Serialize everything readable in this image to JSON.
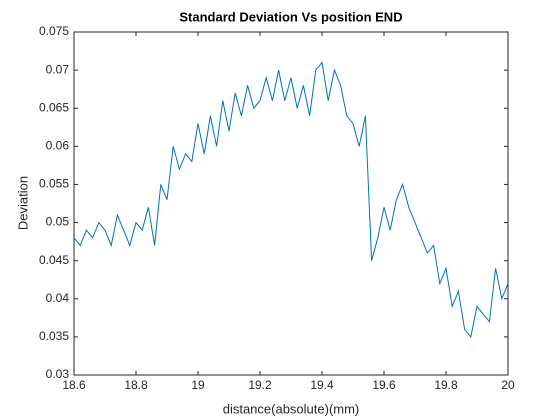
{
  "chart_data": {
    "type": "line",
    "title": "Standard Deviation Vs position END",
    "xlabel": "distance(absolute)(mm)",
    "ylabel": "Deviation",
    "x": [
      18.6,
      18.62,
      18.64,
      18.66,
      18.68,
      18.7,
      18.72,
      18.74,
      18.76,
      18.78,
      18.8,
      18.82,
      18.84,
      18.86,
      18.88,
      18.9,
      18.92,
      18.94,
      18.96,
      18.98,
      19,
      19.02,
      19.04,
      19.06,
      19.08,
      19.1,
      19.12,
      19.14,
      19.16,
      19.18,
      19.2,
      19.22,
      19.24,
      19.26,
      19.28,
      19.3,
      19.32,
      19.34,
      19.36,
      19.38,
      19.4,
      19.42,
      19.44,
      19.46,
      19.48,
      19.5,
      19.52,
      19.54,
      19.56,
      19.58,
      19.6,
      19.62,
      19.64,
      19.66,
      19.68,
      19.7,
      19.72,
      19.74,
      19.76,
      19.78,
      19.8,
      19.82,
      19.84,
      19.86,
      19.88,
      19.9,
      19.92,
      19.94,
      19.96,
      19.98,
      20
    ],
    "series": [
      {
        "name": "Deviation",
        "color": "#0072bd",
        "values": [
          0.048,
          0.047,
          0.049,
          0.048,
          0.05,
          0.049,
          0.047,
          0.051,
          0.049,
          0.047,
          0.05,
          0.049,
          0.052,
          0.047,
          0.055,
          0.053,
          0.06,
          0.057,
          0.059,
          0.058,
          0.063,
          0.059,
          0.064,
          0.06,
          0.066,
          0.062,
          0.067,
          0.064,
          0.068,
          0.065,
          0.066,
          0.069,
          0.066,
          0.07,
          0.066,
          0.069,
          0.065,
          0.068,
          0.064,
          0.07,
          0.071,
          0.066,
          0.07,
          0.068,
          0.064,
          0.063,
          0.06,
          0.064,
          0.045,
          0.048,
          0.052,
          0.049,
          0.053,
          0.055,
          0.052,
          0.05,
          0.048,
          0.046,
          0.047,
          0.042,
          0.044,
          0.039,
          0.041,
          0.036,
          0.035,
          0.039,
          0.038,
          0.037,
          0.044,
          0.04,
          0.042
        ]
      }
    ],
    "xlim": [
      18.6,
      20
    ],
    "xticks": [
      18.6,
      18.8,
      19,
      19.2,
      19.4,
      19.6,
      19.8,
      20
    ],
    "ylim": [
      0.03,
      0.075
    ],
    "yticks": [
      0.03,
      0.035,
      0.04,
      0.045,
      0.05,
      0.055,
      0.06,
      0.065,
      0.07,
      0.075
    ],
    "grid": false
  }
}
